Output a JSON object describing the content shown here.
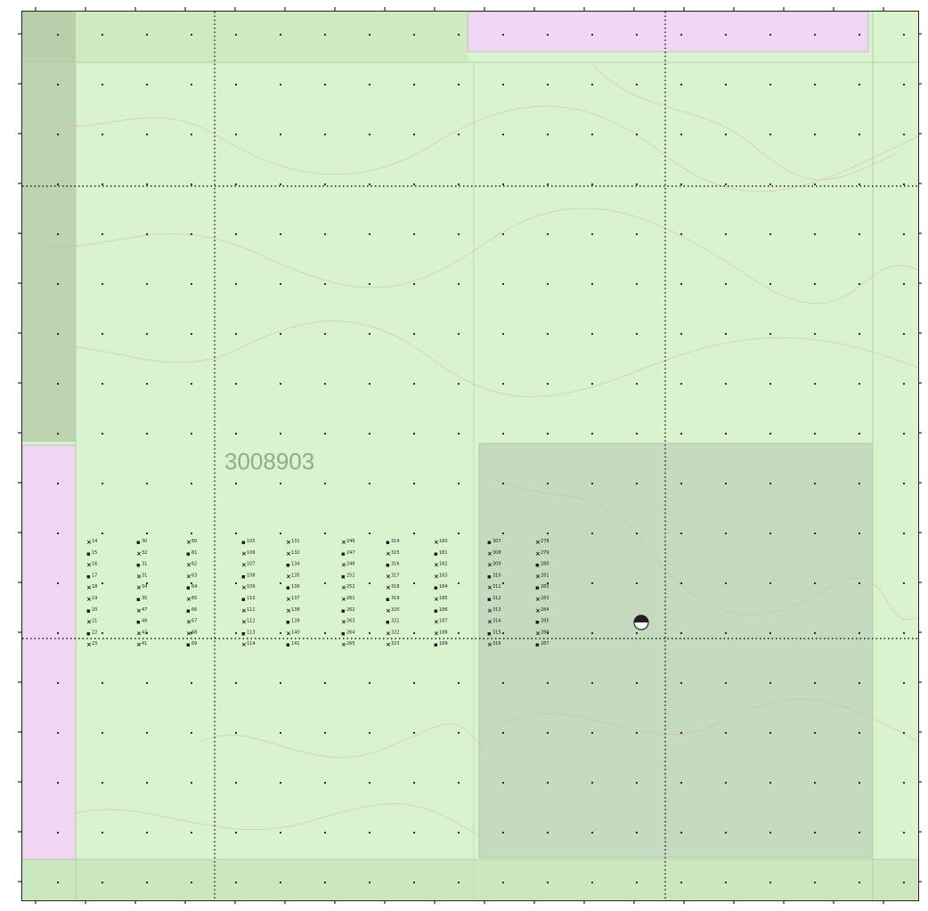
{
  "map": {
    "parcel_id": "3008903",
    "colors": {
      "background_green": "#d9f3cf",
      "upper_green": "#cfe8c2",
      "left_strip": "#a7b897",
      "pink_parcel": "#f0d6f2",
      "gray_parcel": "#c6dac0",
      "grid_dot": "#1b1b1b",
      "contour": "#d8b7a3",
      "label": "#8dad86"
    },
    "sample_grid": {
      "columns": [
        {
          "labels": [
            "14",
            "15",
            "16",
            "17",
            "18",
            "19",
            "20",
            "21",
            "22",
            "23"
          ]
        },
        {
          "labels": [
            "30",
            "32",
            "31",
            "31",
            "34",
            "35",
            "47",
            "48",
            "42",
            "41"
          ]
        },
        {
          "labels": [
            "60",
            "61",
            "62",
            "63",
            "64",
            "65",
            "66",
            "67",
            "68",
            "69"
          ]
        },
        {
          "labels": [
            "105",
            "106",
            "107",
            "108",
            "109",
            "110",
            "111",
            "112",
            "113",
            "114"
          ]
        },
        {
          "labels": [
            "131",
            "132",
            "134",
            "135",
            "136",
            "137",
            "138",
            "139",
            "140",
            "141"
          ]
        },
        {
          "labels": [
            "246",
            "247",
            "248",
            "251",
            "252",
            "261",
            "262",
            "263",
            "264",
            "265"
          ]
        },
        {
          "labels": [
            "314",
            "315",
            "316",
            "317",
            "318",
            "319",
            "320",
            "321",
            "322",
            "323"
          ]
        },
        {
          "labels": [
            "180",
            "181",
            "182",
            "183",
            "184",
            "185",
            "186",
            "187",
            "188",
            "189"
          ]
        },
        {
          "labels": [
            "307",
            "308",
            "309",
            "310",
            "311",
            "312",
            "313",
            "314",
            "315",
            "316"
          ]
        },
        {
          "labels": [
            "278",
            "279",
            "280",
            "281",
            "282",
            "283",
            "284",
            "285",
            "286",
            "287"
          ]
        }
      ]
    },
    "well_symbol": "half-filled-circle-icon"
  }
}
